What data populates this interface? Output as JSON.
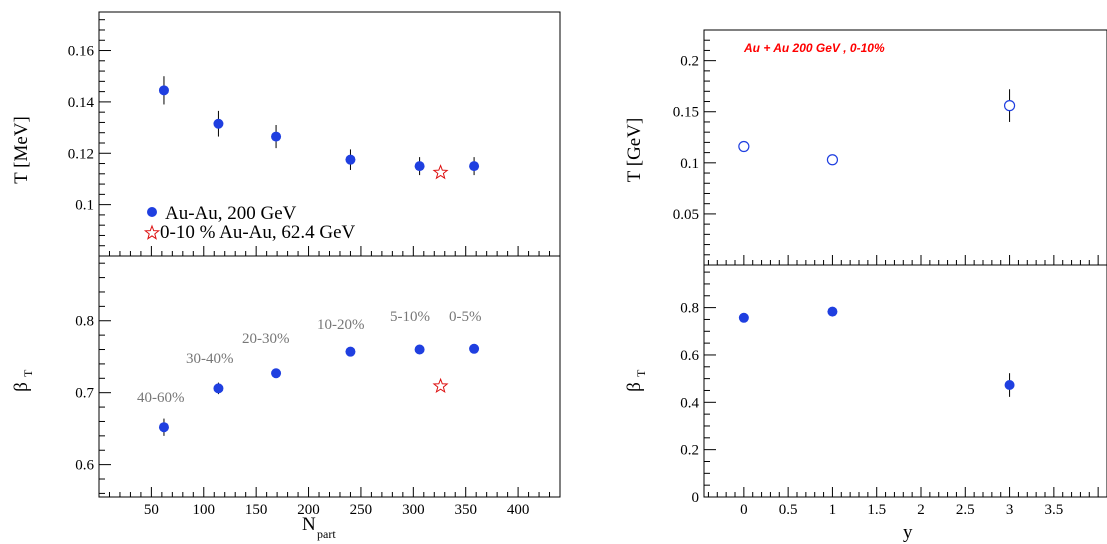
{
  "colors": {
    "series": "#1f3fe0",
    "star": "#dd1111",
    "centrality_label": "#777777",
    "annotation": "#ff0000"
  },
  "chart_data": [
    {
      "type": "scatter",
      "panel": "left-top",
      "ylabel": "T [MeV]",
      "xlim": [
        0,
        440
      ],
      "ylim": [
        0.08,
        0.175
      ],
      "yticks": [
        "0.1",
        "0.12",
        "0.14",
        "0.16"
      ],
      "legend": [
        "Au-Au, 200 GeV",
        "0-10 % Au-Au, 62.4 GeV"
      ],
      "series": [
        {
          "name": "Au-Au, 200 GeV",
          "marker": "filled-circle",
          "x": [
            62,
            114,
            169,
            240,
            306,
            358
          ],
          "y": [
            0.1445,
            0.1315,
            0.1265,
            0.1175,
            0.115,
            0.115
          ],
          "err": [
            0.0055,
            0.005,
            0.0045,
            0.004,
            0.0035,
            0.0035
          ]
        },
        {
          "name": "0-10 % Au-Au, 62.4 GeV",
          "marker": "open-star",
          "x": [
            326
          ],
          "y": [
            0.1125
          ],
          "err": [
            0
          ]
        }
      ]
    },
    {
      "type": "scatter",
      "panel": "left-bottom",
      "ylabel": "β",
      "ylabel_sub": "T",
      "xlabel": "N",
      "xlabel_sub": "part",
      "xlim": [
        0,
        440
      ],
      "ylim": [
        0.555,
        0.89
      ],
      "xticks": [
        "50",
        "100",
        "150",
        "200",
        "250",
        "300",
        "350",
        "400"
      ],
      "yticks": [
        "0.6",
        "0.7",
        "0.8"
      ],
      "centrality_labels": [
        "40-60%",
        "30-40%",
        "20-30%",
        "10-20%",
        "5-10%",
        "0-5%"
      ],
      "series": [
        {
          "name": "Au-Au, 200 GeV",
          "marker": "filled-circle",
          "x": [
            62,
            114,
            169,
            240,
            306,
            358
          ],
          "y": [
            0.652,
            0.706,
            0.727,
            0.757,
            0.76,
            0.761
          ],
          "err": [
            0.012,
            0.008,
            0.004,
            0.003,
            0.003,
            0.003
          ]
        },
        {
          "name": "0-10 % Au-Au, 62.4 GeV",
          "marker": "open-star",
          "x": [
            326
          ],
          "y": [
            0.709
          ],
          "err": [
            0
          ]
        }
      ]
    },
    {
      "type": "scatter",
      "panel": "right-top",
      "ylabel": "T [GeV]",
      "annotation": "Au + Au 200 GeV , 0-10%",
      "xlim": [
        -0.45,
        4.1
      ],
      "ylim": [
        0,
        0.23
      ],
      "yticks": [
        "0.05",
        "0.1",
        "0.15",
        "0.2"
      ],
      "series": [
        {
          "marker": "open-circle",
          "x": [
            0,
            1,
            3
          ],
          "y": [
            0.116,
            0.103,
            0.156
          ],
          "err": [
            0.005,
            0.005,
            0.016
          ]
        }
      ]
    },
    {
      "type": "scatter",
      "panel": "right-bottom",
      "ylabel": "β",
      "ylabel_sub": "T",
      "xlabel": "y",
      "xlim": [
        -0.45,
        4.1
      ],
      "ylim": [
        0,
        0.98
      ],
      "xticks": [
        "0",
        "0.5",
        "1",
        "1.5",
        "2",
        "2.5",
        "3",
        "3.5"
      ],
      "yticks": [
        "0",
        "0.2",
        "0.4",
        "0.6",
        "0.8"
      ],
      "series": [
        {
          "marker": "filled-circle",
          "x": [
            0,
            1,
            3
          ],
          "y": [
            0.757,
            0.783,
            0.473
          ],
          "err": [
            0.01,
            0.01,
            0.05
          ]
        }
      ]
    }
  ]
}
